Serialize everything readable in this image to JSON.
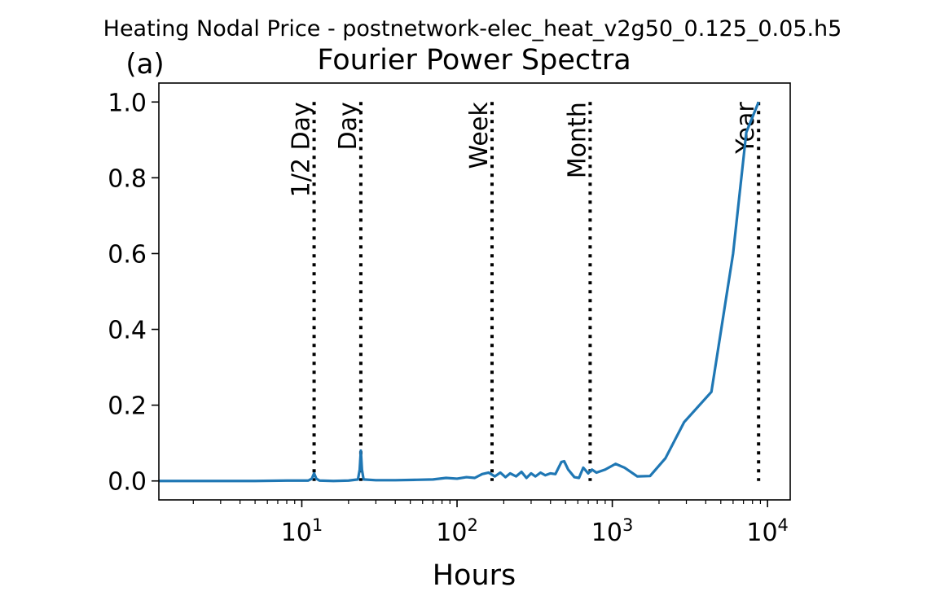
{
  "figure": {
    "suptitle": "Heating Nodal Price - postnetwork-elec_heat_v2g50_0.125_0.05.h5",
    "panel_label": "(a)"
  },
  "chart_data": {
    "type": "line",
    "title": "Fourier Power Spectra",
    "xlabel": "Hours",
    "ylabel": "",
    "xscale": "log",
    "xlim": [
      1.2,
      14000
    ],
    "ylim": [
      -0.05,
      1.05
    ],
    "grid": false,
    "x_ticks": [
      {
        "value": 10,
        "base": "10",
        "exp": "1"
      },
      {
        "value": 100,
        "base": "10",
        "exp": "2"
      },
      {
        "value": 1000,
        "base": "10",
        "exp": "3"
      },
      {
        "value": 10000,
        "base": "10",
        "exp": "4"
      }
    ],
    "y_ticks": [
      {
        "value": 0.0,
        "label": "0.0"
      },
      {
        "value": 0.2,
        "label": "0.2"
      },
      {
        "value": 0.4,
        "label": "0.4"
      },
      {
        "value": 0.6,
        "label": "0.6"
      },
      {
        "value": 0.8,
        "label": "0.8"
      },
      {
        "value": 1.0,
        "label": "1.0"
      }
    ],
    "reference_lines": [
      {
        "x": 12,
        "label": "1/2 Day"
      },
      {
        "x": 24,
        "label": "Day"
      },
      {
        "x": 168,
        "label": "Week"
      },
      {
        "x": 720,
        "label": "Month"
      },
      {
        "x": 8760,
        "label": "Year"
      }
    ],
    "series": [
      {
        "color": "#1f77b4",
        "points": [
          [
            1.2,
            0.0
          ],
          [
            2,
            0.0
          ],
          [
            3,
            0.0
          ],
          [
            5,
            0.0
          ],
          [
            8,
            0.001
          ],
          [
            11,
            0.001
          ],
          [
            11.6,
            0.006
          ],
          [
            12,
            0.02
          ],
          [
            12.4,
            0.006
          ],
          [
            13,
            0.001
          ],
          [
            16,
            0.0
          ],
          [
            20,
            0.001
          ],
          [
            23,
            0.004
          ],
          [
            23.6,
            0.03
          ],
          [
            24,
            0.08
          ],
          [
            24.4,
            0.03
          ],
          [
            25,
            0.004
          ],
          [
            30,
            0.002
          ],
          [
            40,
            0.002
          ],
          [
            55,
            0.003
          ],
          [
            70,
            0.004
          ],
          [
            85,
            0.008
          ],
          [
            100,
            0.006
          ],
          [
            115,
            0.01
          ],
          [
            130,
            0.008
          ],
          [
            145,
            0.018
          ],
          [
            160,
            0.022
          ],
          [
            175,
            0.012
          ],
          [
            190,
            0.022
          ],
          [
            205,
            0.01
          ],
          [
            220,
            0.02
          ],
          [
            240,
            0.012
          ],
          [
            260,
            0.024
          ],
          [
            280,
            0.008
          ],
          [
            300,
            0.02
          ],
          [
            320,
            0.012
          ],
          [
            345,
            0.022
          ],
          [
            370,
            0.015
          ],
          [
            400,
            0.02
          ],
          [
            430,
            0.018
          ],
          [
            470,
            0.05
          ],
          [
            490,
            0.052
          ],
          [
            520,
            0.03
          ],
          [
            570,
            0.01
          ],
          [
            610,
            0.008
          ],
          [
            650,
            0.035
          ],
          [
            700,
            0.02
          ],
          [
            740,
            0.03
          ],
          [
            790,
            0.022
          ],
          [
            900,
            0.03
          ],
          [
            1050,
            0.045
          ],
          [
            1200,
            0.035
          ],
          [
            1450,
            0.012
          ],
          [
            1750,
            0.013
          ],
          [
            2200,
            0.06
          ],
          [
            2900,
            0.155
          ],
          [
            4350,
            0.235
          ],
          [
            6000,
            0.6
          ],
          [
            7300,
            0.92
          ],
          [
            8760,
            1.0
          ]
        ]
      }
    ]
  }
}
